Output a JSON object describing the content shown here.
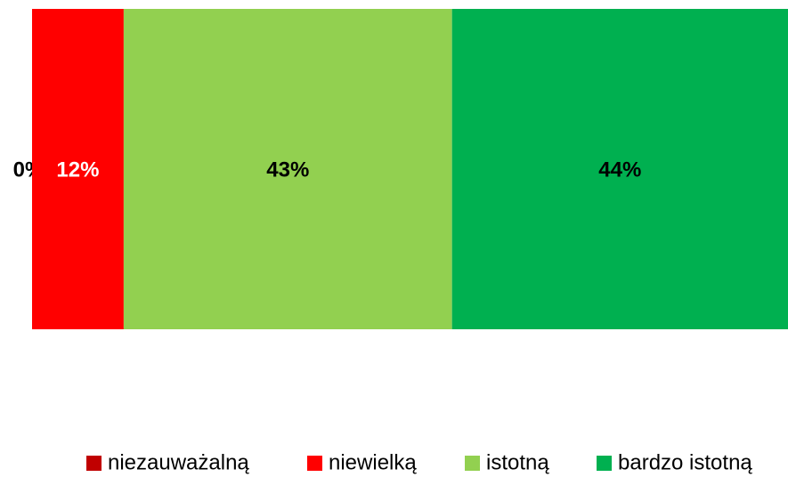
{
  "chart_data": {
    "type": "stacked_bar_horizontal",
    "categories": [
      null
    ],
    "xlim": [
      0,
      99
    ],
    "legend": "bottom",
    "series": [
      {
        "name": "niezauważalną",
        "color": "#c00000",
        "values": [
          0
        ],
        "value_labels": [
          "0%"
        ],
        "label_color": "#000000"
      },
      {
        "name": "niewielką",
        "color": "#ff0000",
        "values": [
          12
        ],
        "value_labels": [
          "12%"
        ],
        "label_color": "#ffffff"
      },
      {
        "name": "istotną",
        "color": "#92d050",
        "values": [
          43
        ],
        "value_labels": [
          "43%"
        ],
        "label_color": "#000000"
      },
      {
        "name": "bardzo istotną",
        "color": "#00b050",
        "values": [
          44
        ],
        "value_labels": [
          "44%"
        ],
        "label_color": "#000000"
      }
    ]
  }
}
